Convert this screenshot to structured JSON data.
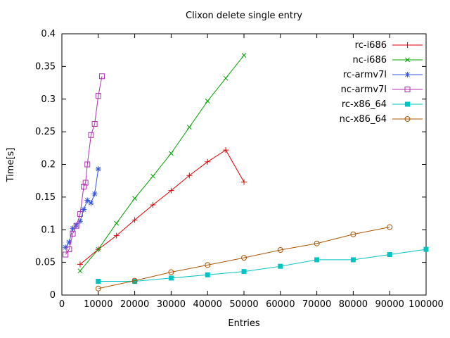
{
  "window": {
    "background": "#ffffff",
    "axis_color": "#000000"
  },
  "chart_data": {
    "type": "line",
    "title": "Clixon delete single entry",
    "xlabel": "Entries",
    "ylabel": "Time[s]",
    "x_range": [
      0,
      100000
    ],
    "y_range": [
      0,
      0.4
    ],
    "x_ticks": [
      0,
      10000,
      20000,
      30000,
      40000,
      50000,
      60000,
      70000,
      80000,
      90000,
      100000
    ],
    "x_tick_labels": [
      "0",
      "10000",
      "20000",
      "30000",
      "40000",
      "50000",
      "60000",
      "70000",
      "80000",
      "90000",
      "100000"
    ],
    "y_ticks": [
      0,
      0.05,
      0.1,
      0.15,
      0.2,
      0.25,
      0.3,
      0.35,
      0.4
    ],
    "y_tick_labels": [
      "0",
      "0.05",
      "0.1",
      "0.15",
      "0.2",
      "0.25",
      "0.3",
      "0.35",
      "0.4"
    ],
    "grid": false,
    "legend": {
      "position": "top-right-inside",
      "entries": [
        "rc-i686",
        "nc-i686",
        "rc-armv7l",
        "nc-armv7l",
        "rc-x86_64",
        "nc-x86_64"
      ]
    },
    "series": [
      {
        "name": "rc-i686",
        "color": "#e00000",
        "marker": "plus",
        "style": "linespoints",
        "x": [
          5000,
          10000,
          15000,
          20000,
          25000,
          30000,
          35000,
          40000,
          45000,
          50000
        ],
        "y": [
          0.047,
          0.07,
          0.091,
          0.115,
          0.138,
          0.16,
          0.183,
          0.204,
          0.222,
          0.173
        ]
      },
      {
        "name": "nc-i686",
        "color": "#00a000",
        "marker": "cross",
        "style": "linespoints",
        "x": [
          5000,
          10000,
          15000,
          20000,
          25000,
          30000,
          35000,
          40000,
          45000,
          50000
        ],
        "y": [
          0.037,
          0.07,
          0.11,
          0.148,
          0.182,
          0.217,
          0.257,
          0.297,
          0.332,
          0.367
        ]
      },
      {
        "name": "rc-armv7l",
        "color": "#3355dd",
        "marker": "asterisk",
        "style": "linespoints",
        "x": [
          1000,
          2000,
          3000,
          4000,
          5000,
          6000,
          7000,
          8000,
          9000,
          10000
        ],
        "y": [
          0.073,
          0.081,
          0.102,
          0.107,
          0.113,
          0.131,
          0.145,
          0.141,
          0.155,
          0.193
        ]
      },
      {
        "name": "nc-armv7l",
        "color": "#b030b0",
        "marker": "square-open",
        "style": "linespoints",
        "x": [
          1000,
          2000,
          3000,
          4000,
          5000,
          6000,
          6500,
          7000,
          8000,
          9000,
          10000,
          11000
        ],
        "y": [
          0.062,
          0.07,
          0.094,
          0.106,
          0.124,
          0.166,
          0.172,
          0.2,
          0.245,
          0.262,
          0.305,
          0.335
        ]
      },
      {
        "name": "rc-x86_64",
        "color": "#00c3c3",
        "marker": "square-filled",
        "style": "linespoints",
        "x": [
          10000,
          20000,
          30000,
          40000,
          50000,
          60000,
          70000,
          80000,
          90000,
          100000
        ],
        "y": [
          0.021,
          0.021,
          0.026,
          0.031,
          0.036,
          0.044,
          0.054,
          0.054,
          0.062,
          0.07
        ]
      },
      {
        "name": "nc-x86_64",
        "color": "#a85400",
        "marker": "circle-open",
        "style": "linespoints",
        "x": [
          10000,
          20000,
          30000,
          40000,
          50000,
          60000,
          70000,
          80000,
          90000
        ],
        "y": [
          0.01,
          0.022,
          0.035,
          0.046,
          0.057,
          0.069,
          0.079,
          0.093,
          0.104
        ]
      }
    ]
  }
}
